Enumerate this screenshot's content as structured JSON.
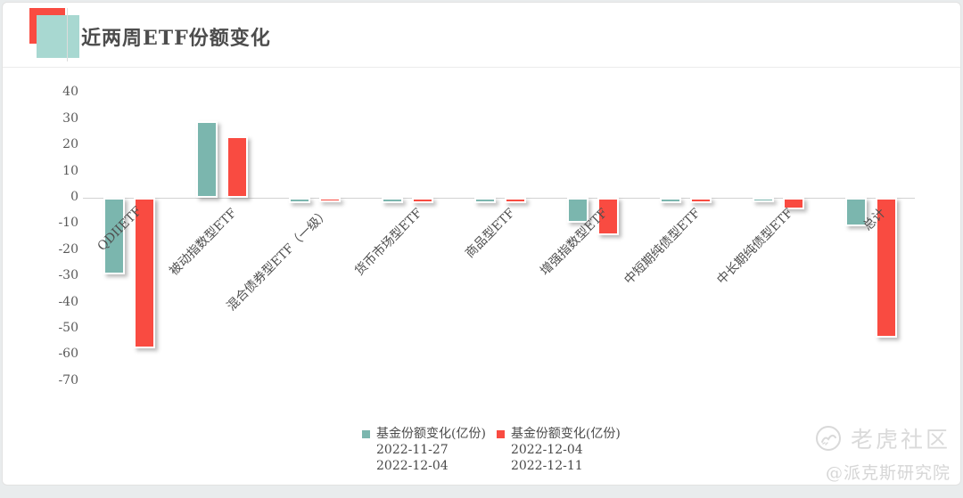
{
  "header": {
    "title": "近两周ETF份额变化"
  },
  "chart_data": {
    "type": "bar",
    "title": "近两周ETF份额变化",
    "xlabel": "",
    "ylabel": "基金份额变化(亿份)",
    "categories": [
      "QDIIETF",
      "被动指数型ETF",
      "混合债券型ETF（一级）",
      "货币市场型ETF",
      "商品型ETF",
      "增强指数型ETF",
      "中短期纯债型ETF",
      "中长期纯债型ETF",
      "总计"
    ],
    "series": [
      {
        "name": "基金份额变化(亿份) 2022-11-27 2022-12-04",
        "color": "#7bb6ae",
        "values": [
          -28,
          28,
          -0.6,
          -0.7,
          -0.6,
          -8,
          -0.6,
          -0.4,
          -9.5
        ]
      },
      {
        "name": "基金份额变化(亿份) 2022-12-04 2022-12-11",
        "color": "#f94b41",
        "values": [
          -56,
          22,
          -0.2,
          -0.7,
          -0.8,
          -13,
          -0.7,
          -3,
          -52
        ]
      }
    ],
    "ylim": [
      -70,
      40
    ],
    "yticks": [
      40,
      30,
      20,
      10,
      0,
      -10,
      -20,
      -30,
      -40,
      -50,
      -60,
      -70
    ],
    "grid": false,
    "legend_position": "bottom"
  },
  "legend": {
    "items": [
      {
        "swatch_color": "#7bb6ae",
        "title": "基金份额变化(亿份)",
        "period_start": "2022-11-27",
        "period_end": "2022-12-04"
      },
      {
        "swatch_color": "#f94b41",
        "title": "基金份额变化(亿份)",
        "period_start": "2022-12-04",
        "period_end": "2022-12-11"
      }
    ]
  },
  "watermark": {
    "brand": "老虎社区",
    "handle": "@派克斯研究院"
  },
  "colors": {
    "teal_bar": "#7bb6ae",
    "red_bar": "#f94b41",
    "icon_teal": "#a8d8d1",
    "icon_red": "#f94b41",
    "axis_line": "#d2d2d2"
  }
}
